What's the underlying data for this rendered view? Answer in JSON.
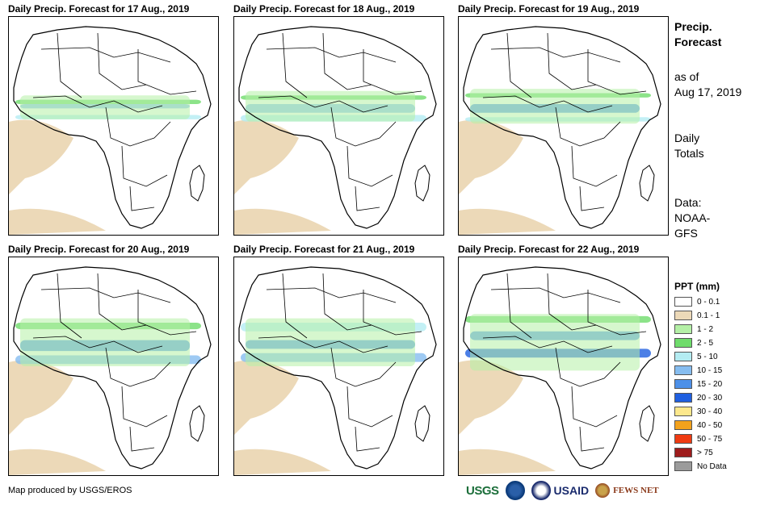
{
  "panels": [
    {
      "title": "Daily Precip. Forecast for 17 Aug., 2019",
      "bands": [
        [
          0.38,
          0.4,
          3
        ],
        [
          0.4,
          0.42,
          5
        ],
        [
          0.45,
          0.47,
          4
        ],
        [
          0.36,
          0.47,
          2
        ]
      ]
    },
    {
      "title": "Daily Precip. Forecast for 18 Aug., 2019",
      "bands": [
        [
          0.36,
          0.38,
          3
        ],
        [
          0.4,
          0.44,
          5
        ],
        [
          0.45,
          0.48,
          4
        ],
        [
          0.34,
          0.48,
          2
        ]
      ]
    },
    {
      "title": "Daily Precip. Forecast for 19 Aug., 2019",
      "bands": [
        [
          0.35,
          0.37,
          3
        ],
        [
          0.4,
          0.44,
          6
        ],
        [
          0.46,
          0.48,
          4
        ],
        [
          0.33,
          0.49,
          2
        ]
      ]
    },
    {
      "title": "Daily Precip. Forecast for 20 Aug., 2019",
      "bands": [
        [
          0.3,
          0.33,
          3
        ],
        [
          0.38,
          0.43,
          6
        ],
        [
          0.45,
          0.49,
          5
        ],
        [
          0.28,
          0.5,
          2
        ]
      ]
    },
    {
      "title": "Daily Precip. Forecast for 21 Aug., 2019",
      "bands": [
        [
          0.3,
          0.34,
          4
        ],
        [
          0.38,
          0.42,
          6
        ],
        [
          0.44,
          0.48,
          5
        ],
        [
          0.28,
          0.5,
          2
        ]
      ]
    },
    {
      "title": "Daily Precip. Forecast for 22 Aug., 2019",
      "bands": [
        [
          0.27,
          0.3,
          3
        ],
        [
          0.34,
          0.38,
          6
        ],
        [
          0.42,
          0.46,
          7
        ],
        [
          0.26,
          0.52,
          2
        ]
      ]
    }
  ],
  "side": {
    "title_line1": "Precip.",
    "title_line2": "Forecast",
    "asof_line1": "as of",
    "asof_line2": "Aug 17, 2019",
    "totals_line1": "Daily",
    "totals_line2": "Totals",
    "data_line1": "Data:",
    "data_line2": "NOAA-",
    "data_line3": "GFS"
  },
  "legend": {
    "title": "PPT (mm)",
    "items": [
      {
        "label": "0 - 0.1",
        "color": "#ffffff"
      },
      {
        "label": "0.1 - 1",
        "color": "#ecd9b8"
      },
      {
        "label": "1 - 2",
        "color": "#b4f0a6"
      },
      {
        "label": "2 - 5",
        "color": "#6fdc6b"
      },
      {
        "label": "5 - 10",
        "color": "#b4ecf2"
      },
      {
        "label": "10 - 15",
        "color": "#86bdf0"
      },
      {
        "label": "15 - 20",
        "color": "#4d90e8"
      },
      {
        "label": "20 - 30",
        "color": "#1f5fe0"
      },
      {
        "label": "30 - 40",
        "color": "#fde88c"
      },
      {
        "label": "40 - 50",
        "color": "#f3a21c"
      },
      {
        "label": "50 - 75",
        "color": "#ef3b12"
      },
      {
        "label": "> 75",
        "color": "#9e1c1c"
      },
      {
        "label": "No Data",
        "color": "#9b9b9b"
      }
    ]
  },
  "credit": "Map produced by USGS/EROS",
  "logos": {
    "usgs": "USGS",
    "usaid": "USAID",
    "fews": "FEWS NET"
  }
}
